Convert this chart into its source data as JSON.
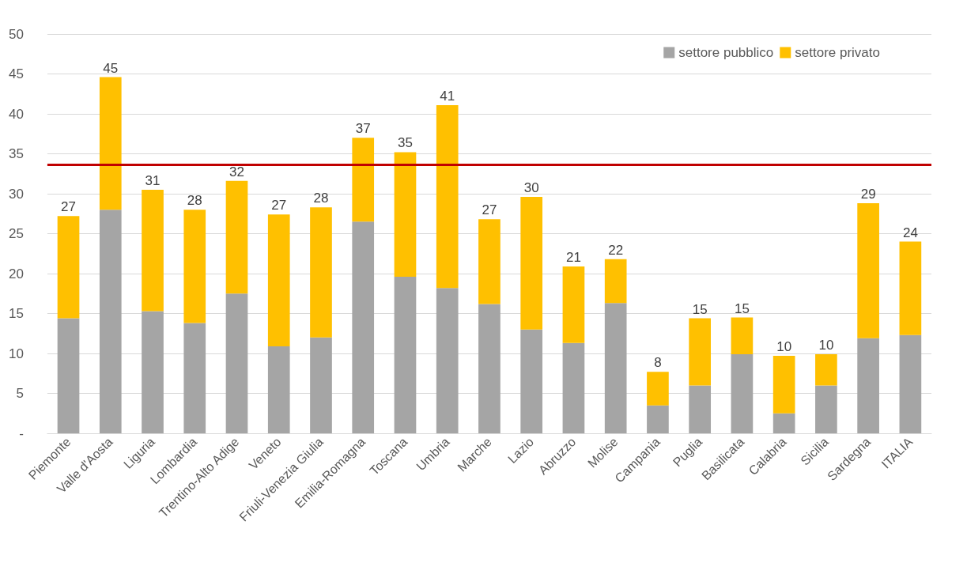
{
  "chart_data": {
    "type": "bar",
    "stacked": true,
    "categories": [
      "Piemonte",
      "Valle d'Aosta",
      "Liguria",
      "Lombardia",
      "Trentino-Alto Adige",
      "Veneto",
      "Friuli-Venezia Giulia",
      "Emilia-Romagna",
      "Toscana",
      "Umbria",
      "Marche",
      "Lazio",
      "Abruzzo",
      "Molise",
      "Campania",
      "Puglia",
      "Basilicata",
      "Calabria",
      "Sicilia",
      "Sardegna",
      "ITALIA"
    ],
    "series": [
      {
        "name": "settore pubblico",
        "color": "#a5a5a5",
        "values": [
          14.4,
          28.0,
          15.3,
          13.8,
          17.5,
          10.9,
          12.0,
          26.5,
          19.6,
          18.2,
          16.2,
          13.0,
          11.3,
          16.3,
          3.5,
          6.0,
          9.9,
          2.5,
          6.0,
          11.9,
          12.3
        ]
      },
      {
        "name": "settore privato",
        "color": "#ffc000",
        "values": [
          12.8,
          16.6,
          15.2,
          14.2,
          14.1,
          16.5,
          16.3,
          10.5,
          15.6,
          22.9,
          10.6,
          16.6,
          9.6,
          5.5,
          4.2,
          8.4,
          4.6,
          7.2,
          3.9,
          16.9,
          11.7
        ]
      }
    ],
    "totals": [
      "27",
      "45",
      "31",
      "28",
      "32",
      "27",
      "28",
      "37",
      "35",
      "41",
      "27",
      "30",
      "21",
      "22",
      "8",
      "15",
      "15",
      "10",
      "10",
      "29",
      "24"
    ],
    "ylim": [
      0,
      50
    ],
    "yticks": [
      {
        "value": 0,
        "label": "-"
      },
      5,
      10,
      15,
      20,
      25,
      30,
      35,
      40,
      45,
      50
    ],
    "ref_lines": [
      {
        "axis": "y",
        "value": 33.6,
        "color": "#c00000"
      }
    ],
    "grid": "y",
    "legend": "top right"
  }
}
